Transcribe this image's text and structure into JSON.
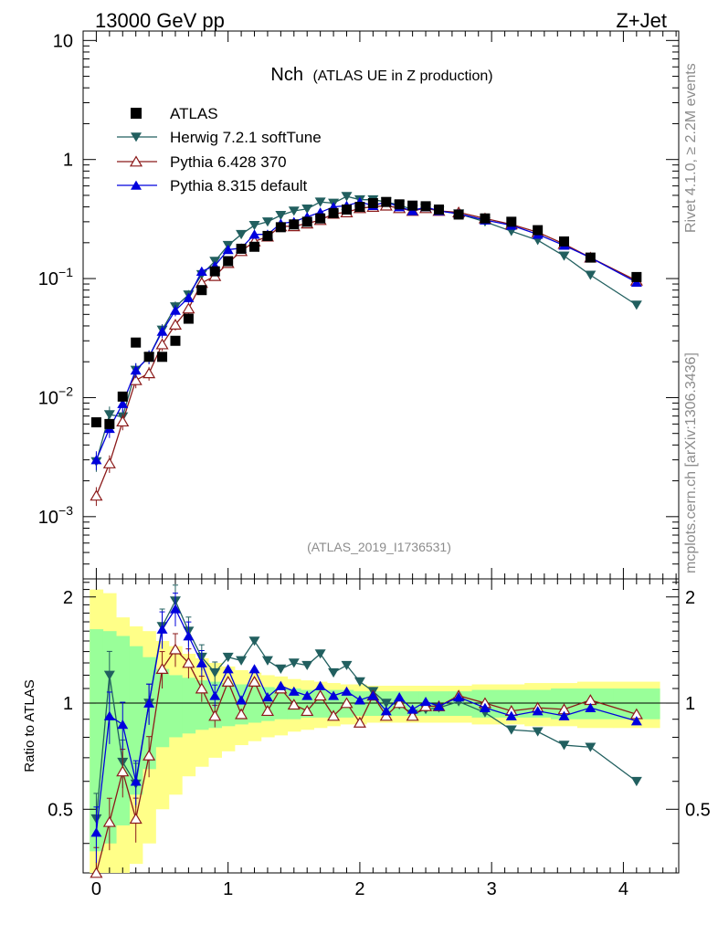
{
  "header": {
    "left": "13000 GeV pp",
    "right": "Z+Jet"
  },
  "chart_data": {
    "type": "scatter",
    "title_main": "Nch",
    "title_sub": "(ATLAS UE in Z production)",
    "analysis_id": "(ATLAS_2019_I1736531)",
    "side_label_top": "Rivet 4.1.0, ≥ 2.2M events",
    "side_label_bottom": "mcplots.cern.ch [arXiv:1306.3436]",
    "ratio_ylabel": "Ratio to ATLAS",
    "x_range": [
      -0.1,
      4.42
    ],
    "main_y_range": [
      0.0003,
      12
    ],
    "ratio_y_range": [
      0.33,
      2.25
    ],
    "x_ticks": [
      0,
      1,
      2,
      3,
      4
    ],
    "x_tick_labels": [
      "0",
      "1",
      "2",
      "3",
      "4"
    ],
    "main_y_ticks": [
      0.001,
      0.01,
      0.1,
      1,
      10
    ],
    "main_y_tick_labels": [
      {
        "base": "10",
        "exp": "−3"
      },
      {
        "base": "10",
        "exp": "−2"
      },
      {
        "base": "10",
        "exp": "−1"
      },
      {
        "base": "1",
        "exp": ""
      },
      {
        "base": "10",
        "exp": ""
      }
    ],
    "ratio_y_ticks": [
      0.5,
      1,
      2
    ],
    "ratio_y_tick_labels": [
      "0.5",
      "1",
      "2"
    ],
    "x": [
      0.0,
      0.1,
      0.2,
      0.3,
      0.4,
      0.5,
      0.6,
      0.7,
      0.8,
      0.9,
      1.0,
      1.1,
      1.2,
      1.3,
      1.4,
      1.5,
      1.6,
      1.7,
      1.8,
      1.9,
      2.0,
      2.1,
      2.2,
      2.3,
      2.4,
      2.5,
      2.6,
      2.75,
      2.95,
      3.15,
      3.35,
      3.55,
      3.75,
      4.1
    ],
    "data_name": "ATLAS",
    "data_values": [
      0.0062,
      0.006,
      0.0102,
      0.029,
      0.022,
      0.022,
      0.03,
      0.046,
      0.08,
      0.115,
      0.14,
      0.178,
      0.185,
      0.228,
      0.27,
      0.285,
      0.3,
      0.32,
      0.355,
      0.38,
      0.4,
      0.43,
      0.44,
      0.42,
      0.41,
      0.405,
      0.38,
      0.345,
      0.32,
      0.3,
      0.255,
      0.205,
      0.15,
      0.103
    ],
    "band_inner": [
      0.62,
      0.6,
      0.55,
      0.45,
      0.35,
      0.25,
      0.2,
      0.18,
      0.16,
      0.15,
      0.14,
      0.13,
      0.12,
      0.11,
      0.1,
      0.1,
      0.09,
      0.09,
      0.09,
      0.09,
      0.08,
      0.08,
      0.08,
      0.08,
      0.08,
      0.08,
      0.08,
      0.08,
      0.09,
      0.09,
      0.09,
      0.1,
      0.1,
      0.1
    ],
    "band_outer": [
      1.1,
      1.05,
      0.75,
      0.65,
      0.6,
      0.5,
      0.45,
      0.38,
      0.34,
      0.3,
      0.27,
      0.24,
      0.22,
      0.2,
      0.19,
      0.17,
      0.16,
      0.15,
      0.14,
      0.13,
      0.13,
      0.12,
      0.12,
      0.12,
      0.12,
      0.12,
      0.12,
      0.12,
      0.13,
      0.13,
      0.14,
      0.14,
      0.15,
      0.15
    ],
    "series": [
      {
        "name": "Herwig 7.2.1 softTune",
        "color": "#215f5f",
        "marker": "triangle-down",
        "values": [
          0.0029,
          0.0072,
          0.0069,
          0.017,
          0.022,
          0.037,
          0.058,
          0.073,
          0.108,
          0.14,
          0.19,
          0.235,
          0.28,
          0.3,
          0.34,
          0.37,
          0.385,
          0.44,
          0.43,
          0.49,
          0.46,
          0.46,
          0.44,
          0.415,
          0.38,
          0.39,
          0.37,
          0.35,
          0.3,
          0.25,
          0.21,
          0.155,
          0.107,
          0.06
        ],
        "ratio": [
          0.47,
          1.2,
          0.68,
          0.59,
          1.0,
          1.65,
          1.95,
          1.6,
          1.35,
          1.22,
          1.35,
          1.32,
          1.5,
          1.32,
          1.25,
          1.3,
          1.28,
          1.38,
          1.22,
          1.28,
          1.15,
          1.08,
          1.0,
          0.99,
          0.93,
          0.96,
          0.97,
          1.01,
          0.94,
          0.84,
          0.83,
          0.76,
          0.75,
          0.6
        ]
      },
      {
        "name": "Pythia 6.428 370",
        "color": "#8b1a1a",
        "marker": "triangle-up-open",
        "values": [
          0.0015,
          0.0028,
          0.0063,
          0.014,
          0.016,
          0.028,
          0.041,
          0.056,
          0.092,
          0.105,
          0.135,
          0.17,
          0.205,
          0.225,
          0.275,
          0.275,
          0.29,
          0.31,
          0.35,
          0.36,
          0.39,
          0.4,
          0.41,
          0.39,
          0.37,
          0.39,
          0.37,
          0.36,
          0.32,
          0.285,
          0.245,
          0.195,
          0.15,
          0.096
        ],
        "ratio": [
          0.33,
          0.46,
          0.64,
          0.47,
          0.71,
          1.25,
          1.42,
          1.3,
          1.1,
          0.92,
          1.15,
          0.93,
          1.15,
          0.95,
          1.1,
          0.99,
          0.95,
          1.05,
          0.92,
          1.0,
          0.88,
          1.05,
          0.92,
          1.0,
          0.92,
          0.98,
          0.98,
          1.05,
          1.0,
          0.95,
          0.97,
          0.96,
          1.02,
          0.93
        ]
      },
      {
        "name": "Pythia 8.315 default",
        "color": "#0000dd",
        "marker": "triangle-up",
        "values": [
          0.003,
          0.0055,
          0.0089,
          0.017,
          0.022,
          0.036,
          0.054,
          0.069,
          0.115,
          0.128,
          0.175,
          0.18,
          0.235,
          0.235,
          0.29,
          0.3,
          0.33,
          0.36,
          0.4,
          0.41,
          0.44,
          0.41,
          0.44,
          0.4,
          0.37,
          0.4,
          0.37,
          0.35,
          0.31,
          0.28,
          0.235,
          0.19,
          0.15,
          0.093
        ],
        "ratio": [
          0.43,
          0.92,
          0.87,
          0.6,
          1.0,
          1.62,
          1.85,
          1.55,
          1.3,
          1.05,
          1.25,
          1.02,
          1.25,
          1.04,
          1.12,
          1.08,
          1.05,
          1.12,
          1.05,
          1.08,
          1.02,
          1.05,
          0.95,
          1.04,
          0.96,
          1.01,
          0.98,
          1.04,
          0.97,
          0.92,
          0.95,
          0.92,
          0.97,
          0.89
        ]
      }
    ]
  }
}
